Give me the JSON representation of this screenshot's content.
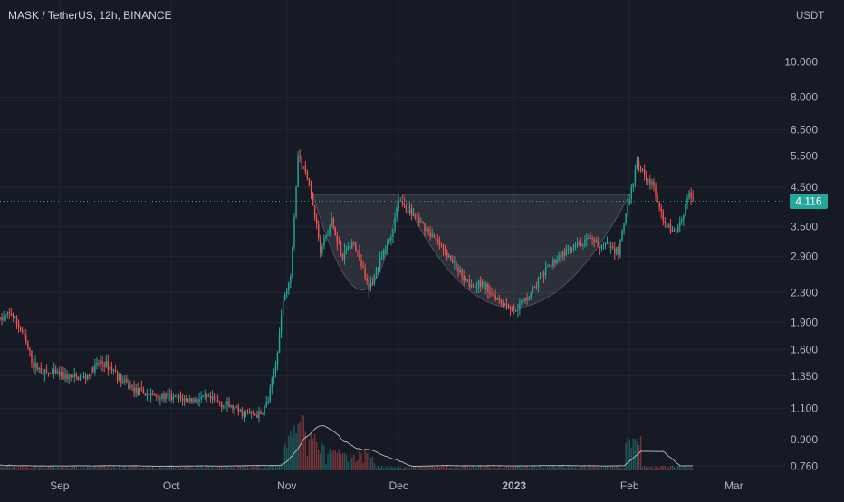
{
  "header": {
    "symbol": "MASK / TetherUS",
    "interval": "12h",
    "exchange": "BINANCE",
    "title": "MASK / TetherUS, 12h, BINANCE",
    "currency": "USDT"
  },
  "colors": {
    "background": "#161a25",
    "grid": "#222632",
    "text": "#b2b5be",
    "up": "#26a69a",
    "down": "#ef5350",
    "price_tag": "#26a69a",
    "pattern_fill": "#d1d4dc",
    "volume_ma": "#d1d4dc"
  },
  "chart_data": {
    "type": "candlestick",
    "title": "MASK / TetherUS, 12h, BINANCE",
    "y_scale": "log",
    "y_unit": "USDT",
    "ylim": [
      0.74,
      12.5
    ],
    "y_ticks": [
      "10.000",
      "8.000",
      "6.500",
      "5.500",
      "4.500",
      "3.500",
      "2.900",
      "2.300",
      "1.900",
      "1.600",
      "1.350",
      "1.100",
      "0.900",
      "0.760"
    ],
    "x_tick_labels": [
      "Sep",
      "Oct",
      "Nov",
      "Dec",
      "2023",
      "Feb",
      "Mar"
    ],
    "x_tick_dates": [
      "2022-09-01",
      "2022-10-01",
      "2022-11-01",
      "2022-12-01",
      "2023-01-01",
      "2023-02-01",
      "2023-03-01"
    ],
    "x_range": [
      "2022-08-16",
      "2023-03-15"
    ],
    "last_price": "4.116",
    "last_price_value": 4.116,
    "grid": true,
    "price_path": [
      [
        "2022-08-16",
        1.93
      ],
      [
        "2022-08-19",
        2.02
      ],
      [
        "2022-08-22",
        1.78
      ],
      [
        "2022-08-25",
        1.45
      ],
      [
        "2022-08-28",
        1.38
      ],
      [
        "2022-09-01",
        1.36
      ],
      [
        "2022-09-05",
        1.33
      ],
      [
        "2022-09-08",
        1.34
      ],
      [
        "2022-09-12",
        1.48
      ],
      [
        "2022-09-15",
        1.42
      ],
      [
        "2022-09-18",
        1.3
      ],
      [
        "2022-09-22",
        1.22
      ],
      [
        "2022-09-25",
        1.2
      ],
      [
        "2022-09-29",
        1.18
      ],
      [
        "2022-10-03",
        1.17
      ],
      [
        "2022-10-07",
        1.16
      ],
      [
        "2022-10-10",
        1.17
      ],
      [
        "2022-10-13",
        1.15
      ],
      [
        "2022-10-16",
        1.12
      ],
      [
        "2022-10-19",
        1.08
      ],
      [
        "2022-10-22",
        1.06
      ],
      [
        "2022-10-25",
        1.05
      ],
      [
        "2022-10-27",
        1.16
      ],
      [
        "2022-10-29",
        1.45
      ],
      [
        "2022-10-31",
        2.2
      ],
      [
        "2022-11-02",
        2.6
      ],
      [
        "2022-11-04",
        5.5
      ],
      [
        "2022-11-06",
        5.0
      ],
      [
        "2022-11-08",
        4.1
      ],
      [
        "2022-11-10",
        3.0
      ],
      [
        "2022-11-13",
        3.6
      ],
      [
        "2022-11-16",
        2.9
      ],
      [
        "2022-11-19",
        3.2
      ],
      [
        "2022-11-21",
        2.75
      ],
      [
        "2022-11-23",
        2.35
      ],
      [
        "2022-11-26",
        2.8
      ],
      [
        "2022-11-29",
        3.3
      ],
      [
        "2022-12-01",
        4.2
      ],
      [
        "2022-12-04",
        3.85
      ],
      [
        "2022-12-08",
        3.5
      ],
      [
        "2022-12-12",
        3.1
      ],
      [
        "2022-12-16",
        2.75
      ],
      [
        "2022-12-20",
        2.45
      ],
      [
        "2022-12-24",
        2.4
      ],
      [
        "2022-12-28",
        2.2
      ],
      [
        "2023-01-01",
        2.05
      ],
      [
        "2023-01-05",
        2.25
      ],
      [
        "2023-01-09",
        2.6
      ],
      [
        "2023-01-13",
        2.9
      ],
      [
        "2023-01-17",
        3.05
      ],
      [
        "2023-01-21",
        3.2
      ],
      [
        "2023-01-25",
        3.1
      ],
      [
        "2023-01-29",
        3.0
      ],
      [
        "2023-02-01",
        4.2
      ],
      [
        "2023-02-03",
        5.2
      ],
      [
        "2023-02-05",
        4.9
      ],
      [
        "2023-02-07",
        4.6
      ],
      [
        "2023-02-10",
        3.6
      ],
      [
        "2023-02-13",
        3.35
      ],
      [
        "2023-02-15",
        3.7
      ],
      [
        "2023-02-17",
        4.4
      ],
      [
        "2023-02-18",
        4.116
      ]
    ],
    "volume_spikes": [
      [
        "2022-11-01",
        0.55
      ],
      [
        "2022-11-03",
        0.85
      ],
      [
        "2022-11-05",
        1.0
      ],
      [
        "2022-11-08",
        0.6
      ],
      [
        "2022-11-10",
        0.45
      ],
      [
        "2022-11-14",
        0.35
      ],
      [
        "2023-02-01",
        0.55
      ],
      [
        "2023-02-03",
        0.6
      ]
    ],
    "patterns": [
      {
        "name": "small cup",
        "start": "2022-11-08",
        "end": "2022-12-01",
        "bottom": "2022-11-23",
        "rim": 4.3,
        "low": 2.3
      },
      {
        "name": "large cup",
        "start": "2022-12-02",
        "end": "2023-02-01",
        "bottom": "2022-12-31",
        "rim": 4.3,
        "low": 2.05
      }
    ]
  }
}
